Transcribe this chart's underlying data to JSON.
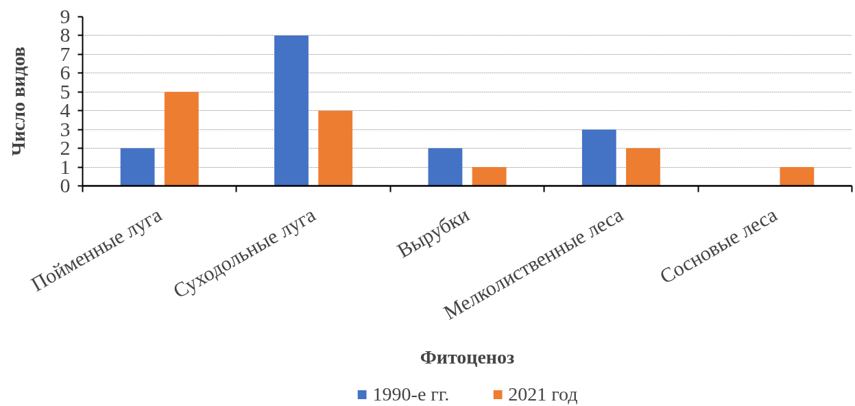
{
  "chart_data": {
    "type": "bar",
    "xlabel": "Фитоценоз",
    "ylabel": "Число видов",
    "categories": [
      "Пойменные луга",
      "Суходольные луга",
      "Вырубки",
      "Мелколиственные леса",
      "Сосновые леса"
    ],
    "series": [
      {
        "name": "1990-е гг.",
        "color": "#4472c4",
        "values": [
          2,
          8,
          2,
          3,
          0
        ]
      },
      {
        "name": "2021 год",
        "color": "#ed7d31",
        "values": [
          5,
          4,
          1,
          2,
          1
        ]
      }
    ],
    "ylim": [
      0,
      9
    ],
    "yticks": [
      0,
      1,
      2,
      3,
      4,
      5,
      6,
      7,
      8,
      9
    ],
    "grid": "y",
    "legend": "bottom"
  }
}
